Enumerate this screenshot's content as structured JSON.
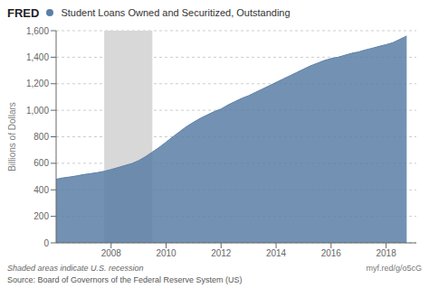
{
  "chart_data": {
    "type": "area",
    "title": "Student Loans Owned and Securitized, Outstanding",
    "ylabel": "Billions of Dollars",
    "annotations": [
      "FRED",
      "Shaded areas indicate U.S. recession",
      "Source: Board of Governors of the Federal Reserve System (US)",
      "myf.red/g/o5cG"
    ],
    "x": [
      2006.0,
      2006.25,
      2006.5,
      2006.75,
      2007.0,
      2007.25,
      2007.5,
      2007.75,
      2008.0,
      2008.25,
      2008.5,
      2008.75,
      2009.0,
      2009.25,
      2009.5,
      2009.75,
      2010.0,
      2010.25,
      2010.5,
      2010.75,
      2011.0,
      2011.25,
      2011.5,
      2011.75,
      2012.0,
      2012.25,
      2012.5,
      2012.75,
      2013.0,
      2013.25,
      2013.5,
      2013.75,
      2014.0,
      2014.25,
      2014.5,
      2014.75,
      2015.0,
      2015.25,
      2015.5,
      2015.75,
      2016.0,
      2016.25,
      2016.5,
      2016.75,
      2017.0,
      2017.25,
      2017.5,
      2017.75,
      2018.0,
      2018.25,
      2018.5,
      2018.75
    ],
    "values": [
      480,
      490,
      497,
      505,
      515,
      522,
      530,
      540,
      553,
      568,
      583,
      598,
      620,
      650,
      685,
      720,
      760,
      800,
      840,
      878,
      910,
      940,
      965,
      990,
      1010,
      1040,
      1065,
      1090,
      1110,
      1135,
      1160,
      1185,
      1210,
      1235,
      1260,
      1285,
      1310,
      1335,
      1355,
      1375,
      1390,
      1400,
      1415,
      1430,
      1440,
      1455,
      1468,
      1482,
      1495,
      1510,
      1535,
      1560
    ],
    "color": "#5b7fa6",
    "recession": {
      "start": 2007.75,
      "end": 2009.5,
      "color": "#d8d8d8"
    },
    "xlim": [
      2006.0,
      2019.1
    ],
    "xticks": [
      2008,
      2010,
      2012,
      2014,
      2016,
      2018
    ],
    "ylim": [
      0,
      1600
    ],
    "yticks": [
      0,
      200,
      400,
      600,
      800,
      {
        "value": 1000,
        "label": "1,000"
      },
      {
        "value": 1200,
        "label": "1,200"
      },
      {
        "value": 1400,
        "label": "1,400"
      },
      {
        "value": 1600,
        "label": "1,600"
      }
    ],
    "grid": true
  }
}
